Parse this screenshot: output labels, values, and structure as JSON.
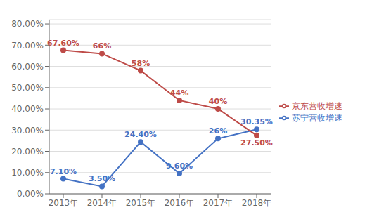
{
  "chart_data": {
    "type": "line",
    "categories": [
      "2013年",
      "2014年",
      "2015年",
      "2016年",
      "2017年",
      "2018年"
    ],
    "series": [
      {
        "name": "苏宁营收增速",
        "color": "#4472C4",
        "marker": "circle",
        "values": [
          0.071,
          0.035,
          0.244,
          0.096,
          0.26,
          0.3035
        ],
        "value_labels": [
          "7.10%",
          "3.50%",
          "24.40%",
          "9.60%",
          "26%",
          "30.35%"
        ]
      },
      {
        "name": "京东营收增速",
        "color": "#BE4B48",
        "marker": "circle",
        "values": [
          0.676,
          0.66,
          0.58,
          0.44,
          0.4,
          0.275
        ],
        "value_labels": [
          "67.60%",
          "66%",
          "58%",
          "44%",
          "40%",
          "27.50%"
        ]
      }
    ],
    "ylim": [
      0.0,
      0.82
    ],
    "yticks": [
      {
        "value": 0.0,
        "label": "0.00%"
      },
      {
        "value": 0.1,
        "label": "10.00%"
      },
      {
        "value": 0.2,
        "label": "20.00%"
      },
      {
        "value": 0.3,
        "label": "30.00%"
      },
      {
        "value": 0.4,
        "label": "40.00%"
      },
      {
        "value": 0.5,
        "label": "50.00%"
      },
      {
        "value": 0.6,
        "label": "60.00%"
      },
      {
        "value": 0.7,
        "label": "70.00%"
      },
      {
        "value": 0.8,
        "label": "80.00%"
      }
    ],
    "grid": "y",
    "data_labels": true,
    "legend": "right"
  }
}
